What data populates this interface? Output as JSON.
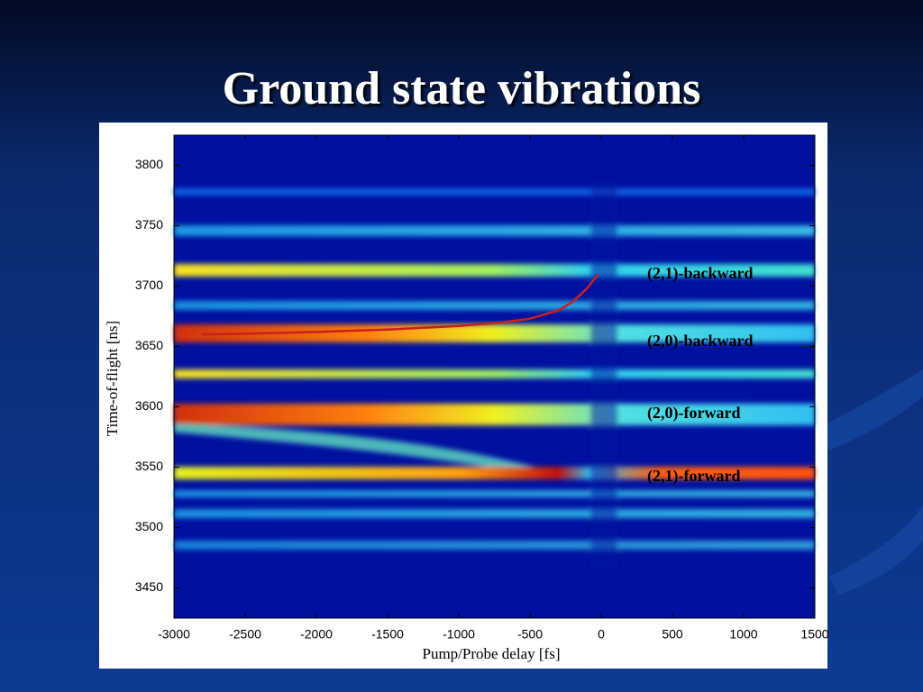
{
  "slide_title": "Ground state vibrations",
  "chart_data": {
    "type": "heatmap",
    "xlabel": "Pump/Probe delay [fs]",
    "ylabel": "Time-of-flight [ns]",
    "xlim": [
      -3000,
      1500
    ],
    "ylim": [
      3425,
      3825
    ],
    "xticks": [
      -3000,
      -2500,
      -2000,
      -1500,
      -1000,
      -500,
      0,
      500,
      1000,
      1500
    ],
    "yticks": [
      3450,
      3500,
      3550,
      3600,
      3650,
      3700,
      3750,
      3800
    ],
    "line": {
      "color": "#c8201c",
      "x": [
        -2800,
        -2500,
        -2000,
        -1500,
        -1000,
        -700,
        -500,
        -300,
        -200,
        -100,
        -20
      ],
      "values": [
        3660,
        3660.5,
        3662,
        3664,
        3667,
        3670,
        3673,
        3680,
        3687,
        3698,
        3710
      ]
    },
    "annotations": [
      "(2,1)-backward",
      "(2,0)-backward",
      "(2,0)-forward",
      "(2,1)-forward"
    ]
  }
}
